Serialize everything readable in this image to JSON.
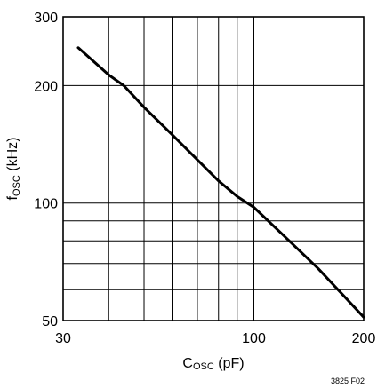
{
  "chart_data": {
    "type": "line",
    "title": "",
    "xlabel": {
      "main": "C",
      "sub": "OSC",
      "unit": " (pF)"
    },
    "ylabel": {
      "main": "f",
      "sub": "OSC",
      "unit": " (kHz)"
    },
    "xscale": "log",
    "yscale": "log",
    "xlim": [
      30,
      200
    ],
    "ylim": [
      50,
      300
    ],
    "xticks": [
      30,
      100,
      200
    ],
    "yticks": [
      50,
      100,
      200,
      300
    ],
    "x_gridlines": [
      40,
      50,
      60,
      70,
      80,
      90,
      100
    ],
    "y_gridlines": [
      60,
      70,
      80,
      90,
      100,
      200
    ],
    "grid": true,
    "legend": "none",
    "series": [
      {
        "x": [
          33,
          40,
          44,
          50,
          60,
          70,
          80,
          90,
          100,
          120,
          150,
          200
        ],
        "y": [
          250,
          213,
          200,
          176,
          149,
          129,
          114,
          104,
          97.5,
          83,
          68,
          51
        ]
      }
    ],
    "line_color": "#000000"
  },
  "figure_note": "3825 F02"
}
